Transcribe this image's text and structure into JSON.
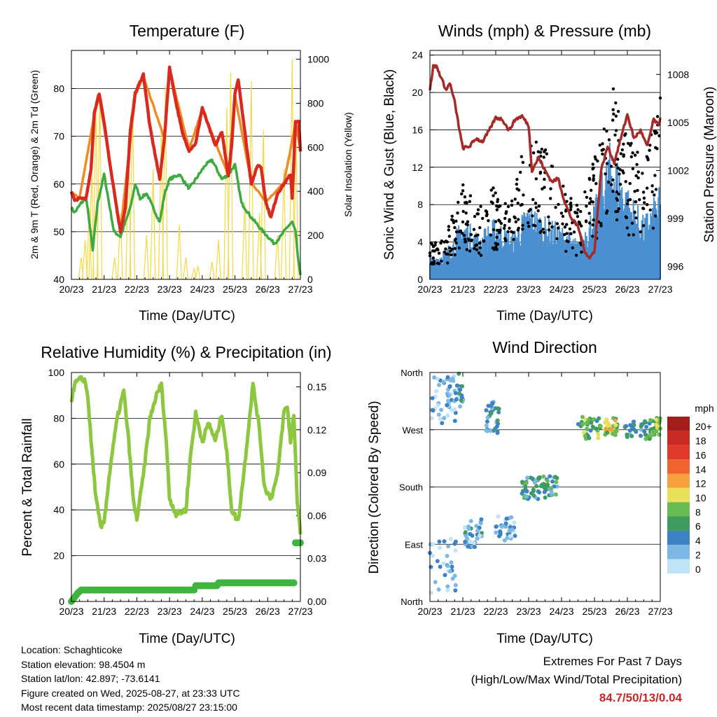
{
  "info": {
    "location": "Location: Schaghticoke",
    "elevation": "Station elevation: 98.4504 m",
    "latlon": "Station lat/lon: 42.897; -73.6141",
    "created": "Figure created on Wed, 2025-08-27, at 23:33 UTC",
    "latest": "Most recent data timestamp: 2025/08/27 23:15:00"
  },
  "extremes": {
    "title": "Extremes For Past 7 Days",
    "subtitle": "(High/Low/Max Wind/Total Precipitation)",
    "values": "84.7/50/13/0.04"
  },
  "chart_data": [
    {
      "type": "line",
      "title": "Temperature (F)",
      "xlabel": "Time (Day/UTC)",
      "ylabel": "2m & 9m T (Red, Orange) & 2m Td (Green)",
      "ylabel_right": "Solar Insolation (Yellow)",
      "x_ticks": [
        "20/23",
        "21/23",
        "22/23",
        "23/23",
        "24/23",
        "25/23",
        "26/23",
        "27/23"
      ],
      "x_range": [
        0,
        7
      ],
      "ylim": [
        40,
        88
      ],
      "y_ticks": [
        40,
        50,
        60,
        70,
        80
      ],
      "ylim_right": [
        0,
        1040
      ],
      "y_ticks_right": [
        0,
        200,
        400,
        600,
        800,
        1000
      ],
      "grid": true,
      "series": [
        {
          "name": "2m T",
          "color": "#d92a20",
          "x": [
            0,
            0.1,
            0.25,
            0.45,
            0.6,
            0.7,
            0.85,
            1.0,
            1.2,
            1.5,
            1.65,
            1.8,
            1.95,
            2.2,
            2.4,
            2.7,
            2.85,
            3.0,
            3.2,
            3.4,
            3.6,
            3.8,
            4.0,
            4.2,
            4.4,
            4.6,
            4.8,
            4.9,
            5.0,
            5.1,
            5.3,
            5.5,
            5.7,
            5.8,
            5.95,
            6.1,
            6.3,
            6.5,
            6.7,
            6.75,
            6.85,
            6.95,
            7.0
          ],
          "y": [
            58.5,
            56.5,
            57,
            57,
            63,
            75,
            79,
            73,
            63,
            50,
            55,
            71,
            79,
            83,
            72,
            61,
            70,
            84.5,
            77,
            70.5,
            67,
            68.5,
            76,
            72,
            68,
            71,
            61.5,
            68,
            79,
            82,
            71,
            60,
            64,
            63.5,
            56,
            53,
            58,
            60,
            62,
            57,
            73,
            73,
            67
          ]
        },
        {
          "name": "9m T",
          "color": "#f08a24",
          "x": [
            0,
            0.25,
            0.7,
            0.85,
            1.5,
            1.95,
            2.2,
            2.85,
            3.0,
            3.6,
            4.0,
            4.8,
            5.0,
            5.5,
            5.95,
            6.5,
            6.85,
            7.0
          ],
          "y": [
            58.2,
            57,
            74.5,
            78.5,
            50.3,
            78.5,
            82.5,
            69.5,
            84,
            67.3,
            75.6,
            61.8,
            78.6,
            60.3,
            56.3,
            60.3,
            72.6,
            67.3
          ]
        },
        {
          "name": "2m Td",
          "color": "#3faa3f",
          "x": [
            0,
            0.1,
            0.3,
            0.45,
            0.55,
            0.65,
            0.8,
            1.0,
            1.3,
            1.5,
            1.8,
            1.95,
            2.1,
            2.3,
            2.5,
            2.7,
            2.85,
            3.0,
            3.3,
            3.6,
            3.9,
            4.1,
            4.3,
            4.6,
            4.8,
            5.0,
            5.2,
            5.5,
            5.8,
            6.0,
            6.2,
            6.4,
            6.6,
            6.75,
            6.85,
            6.95,
            7.0
          ],
          "y": [
            55,
            54,
            56,
            57,
            52,
            46,
            56,
            62,
            50,
            49,
            55,
            60,
            57,
            58,
            55,
            52,
            58,
            61,
            62,
            59,
            62,
            64,
            65,
            61,
            62,
            64,
            56,
            53,
            50.5,
            49,
            47.5,
            49,
            51,
            52,
            50,
            43,
            41
          ]
        },
        {
          "name": "Solar Insolation",
          "color": "#f5d840",
          "axis": "right",
          "x": [
            0.3,
            0.42,
            0.55,
            0.62,
            0.75,
            0.87,
            1.32,
            1.5,
            1.75,
            1.87,
            2.3,
            2.5,
            2.75,
            2.87,
            3.3,
            3.5,
            3.75,
            3.87,
            4.3,
            4.5,
            4.75,
            4.87,
            5.3,
            5.5,
            5.75,
            5.87,
            6.3,
            6.5,
            6.75,
            6.87
          ],
          "y": [
            100,
            180,
            320,
            500,
            800,
            850,
            100,
            300,
            600,
            820,
            200,
            500,
            700,
            880,
            250,
            100,
            50,
            60,
            80,
            180,
            780,
            940,
            350,
            900,
            300,
            680,
            200,
            500,
            1000,
            650
          ]
        }
      ]
    },
    {
      "type": "line",
      "title": "Winds (mph) & Pressure (mb)",
      "xlabel": "Time (Day/UTC)",
      "ylabel": "Sonic Wind & Gust (Blue, Black)",
      "ylabel_right": "Station Pressure (Maroon)",
      "x_ticks": [
        "20/23",
        "21/23",
        "22/23",
        "23/23",
        "24/23",
        "25/23",
        "26/23",
        "27/23"
      ],
      "x_range": [
        0,
        7
      ],
      "ylim": [
        0,
        24.5
      ],
      "y_ticks": [
        0,
        4,
        8,
        12,
        16,
        20,
        24
      ],
      "ylim_right": [
        995.2,
        1009.5
      ],
      "y_ticks_right": [
        996,
        999,
        1002,
        1005,
        1008
      ],
      "grid": true,
      "series": [
        {
          "name": "Sonic Wind",
          "color": "#4a90d0",
          "x": [
            0,
            0.5,
            1.0,
            1.5,
            2.0,
            2.5,
            3.0,
            3.5,
            4.0,
            4.5,
            5.0,
            5.5,
            6.0,
            6.5,
            7.0
          ],
          "y": [
            1.5,
            2,
            4,
            3,
            4,
            3,
            5,
            4,
            3.5,
            2.5,
            5,
            9,
            6,
            4,
            6
          ]
        },
        {
          "name": "Gust",
          "color": "#000000",
          "x": [
            0,
            0.5,
            1.0,
            1.5,
            2.0,
            2.5,
            3.0,
            3.5,
            4.0,
            4.5,
            5.0,
            5.5,
            6.0,
            6.5,
            7.0
          ],
          "y": [
            3,
            4,
            8,
            6,
            8,
            7,
            13,
            11,
            8,
            6,
            10,
            17,
            12,
            10,
            15
          ]
        },
        {
          "name": "Station Pressure",
          "color": "#a52a2a",
          "axis": "right",
          "x": [
            0,
            0.1,
            0.2,
            0.3,
            0.4,
            0.5,
            0.6,
            0.75,
            0.9,
            1.0,
            1.2,
            1.4,
            1.6,
            1.8,
            2.0,
            2.2,
            2.4,
            2.6,
            2.8,
            3.0,
            3.1,
            3.3,
            3.5,
            3.7,
            3.9,
            4.1,
            4.3,
            4.5,
            4.7,
            4.85,
            5.0,
            5.2,
            5.4,
            5.6,
            5.8,
            6.0,
            6.2,
            6.4,
            6.6,
            6.8,
            6.95,
            7.0
          ],
          "y": [
            1007,
            1008.5,
            1008.5,
            1008,
            1007.5,
            1007,
            1007.5,
            1006.3,
            1004.5,
            1003.4,
            1003.5,
            1004,
            1003.8,
            1004.5,
            1005.3,
            1005.2,
            1004.5,
            1005.2,
            1005.4,
            1004.8,
            1002,
            1002.8,
            1002,
            1001.3,
            1001.5,
            1000,
            999,
            998.5,
            997,
            996.5,
            997,
            1002,
            1003.5,
            1002.5,
            1004,
            1005.5,
            1004,
            1004.5,
            1003.5,
            1005.2,
            1004.8,
            1005.3
          ]
        }
      ]
    },
    {
      "type": "line",
      "title": "Relative Humidity (%) & Precipitation (in)",
      "xlabel": "Time (Day/UTC)",
      "ylabel": "Percent & Total Rainfall",
      "x_ticks": [
        "20/23",
        "21/23",
        "22/23",
        "23/23",
        "24/23",
        "25/23",
        "26/23",
        "27/23"
      ],
      "x_range": [
        0,
        7
      ],
      "ylim": [
        0,
        100
      ],
      "y_ticks": [
        0,
        20,
        40,
        60,
        80,
        100
      ],
      "ylim_right": [
        0,
        0.16
      ],
      "y_ticks_right": [
        "0.00",
        "0.03",
        "0.06",
        "0.09",
        "0.12",
        "0.15"
      ],
      "grid": true,
      "series": [
        {
          "name": "Relative Humidity",
          "color": "#8dc63f",
          "x": [
            0,
            0.1,
            0.25,
            0.4,
            0.5,
            0.6,
            0.75,
            0.9,
            1.0,
            1.2,
            1.4,
            1.6,
            1.75,
            1.9,
            2.0,
            2.2,
            2.4,
            2.6,
            2.75,
            2.9,
            3.0,
            3.2,
            3.5,
            3.65,
            3.8,
            4.0,
            4.2,
            4.4,
            4.6,
            4.75,
            4.9,
            5.1,
            5.3,
            5.55,
            5.75,
            5.9,
            6.1,
            6.3,
            6.5,
            6.6,
            6.7,
            6.8,
            6.9,
            7.0
          ],
          "y": [
            88,
            95,
            97,
            97,
            90,
            70,
            45,
            32,
            35,
            60,
            80,
            92,
            70,
            43,
            36,
            55,
            80,
            90,
            95,
            70,
            45,
            38,
            40,
            65,
            82,
            70,
            78,
            70,
            82,
            65,
            40,
            35,
            60,
            95,
            75,
            50,
            45,
            55,
            83,
            85,
            70,
            82,
            45,
            30
          ]
        },
        {
          "name": "Total Rainfall",
          "color": "#3fb43f",
          "axis": "right",
          "x": [
            0,
            0.1,
            0.2,
            0.3,
            0.4,
            3.75,
            3.8,
            4.45,
            4.5,
            6.8,
            6.82,
            6.85,
            7.0
          ],
          "y": [
            0,
            0.003,
            0.006,
            0.008,
            0.008,
            0.008,
            0.011,
            0.011,
            0.013,
            0.013,
            0.024,
            0.041,
            0.041
          ]
        }
      ]
    },
    {
      "type": "scatter",
      "title": "Wind Direction",
      "xlabel": "Time (Day/UTC)",
      "ylabel": "Direction (Colored By Speed)",
      "x_ticks": [
        "20/23",
        "21/23",
        "22/23",
        "23/23",
        "24/23",
        "25/23",
        "26/23",
        "27/23"
      ],
      "x_range": [
        0,
        7
      ],
      "ylim": [
        0,
        360
      ],
      "y_ticks": [
        "North",
        "East",
        "South",
        "West",
        "North"
      ],
      "grid": true,
      "colorbar": {
        "title": "mph",
        "labels": [
          "20+",
          "18",
          "16",
          "14",
          "12",
          "10",
          "8",
          "6",
          "4",
          "2",
          "0"
        ],
        "colors": [
          "#a51c1c",
          "#c92a24",
          "#e03a2a",
          "#f0622f",
          "#f7a03f",
          "#e8df5a",
          "#69bb55",
          "#3f9c5f",
          "#3f82c4",
          "#7cb8e3",
          "#bfe3f7"
        ]
      },
      "clusters": [
        {
          "x": [
            0.0,
            0.8
          ],
          "y": [
            10,
            100
          ],
          "speed": 2
        },
        {
          "x": [
            0.0,
            0.8
          ],
          "y": [
            280,
            355
          ],
          "speed": 2
        },
        {
          "x": [
            0.5,
            1.0
          ],
          "y": [
            300,
            360
          ],
          "speed": 3
        },
        {
          "x": [
            1.0,
            1.6
          ],
          "y": [
            85,
            130
          ],
          "speed": 3
        },
        {
          "x": [
            1.7,
            2.1
          ],
          "y": [
            265,
            315
          ],
          "speed": 4
        },
        {
          "x": [
            2.0,
            2.6
          ],
          "y": [
            95,
            135
          ],
          "speed": 3
        },
        {
          "x": [
            2.8,
            3.3
          ],
          "y": [
            160,
            195
          ],
          "speed": 5
        },
        {
          "x": [
            3.3,
            3.9
          ],
          "y": [
            160,
            200
          ],
          "speed": 5
        },
        {
          "x": [
            4.5,
            5.2
          ],
          "y": [
            255,
            290
          ],
          "speed": 7
        },
        {
          "x": [
            5.3,
            5.7
          ],
          "y": [
            260,
            290
          ],
          "speed": 9
        },
        {
          "x": [
            5.9,
            6.7
          ],
          "y": [
            255,
            285
          ],
          "speed": 5
        },
        {
          "x": [
            6.7,
            7.0
          ],
          "y": [
            260,
            290
          ],
          "speed": 8
        }
      ]
    }
  ]
}
